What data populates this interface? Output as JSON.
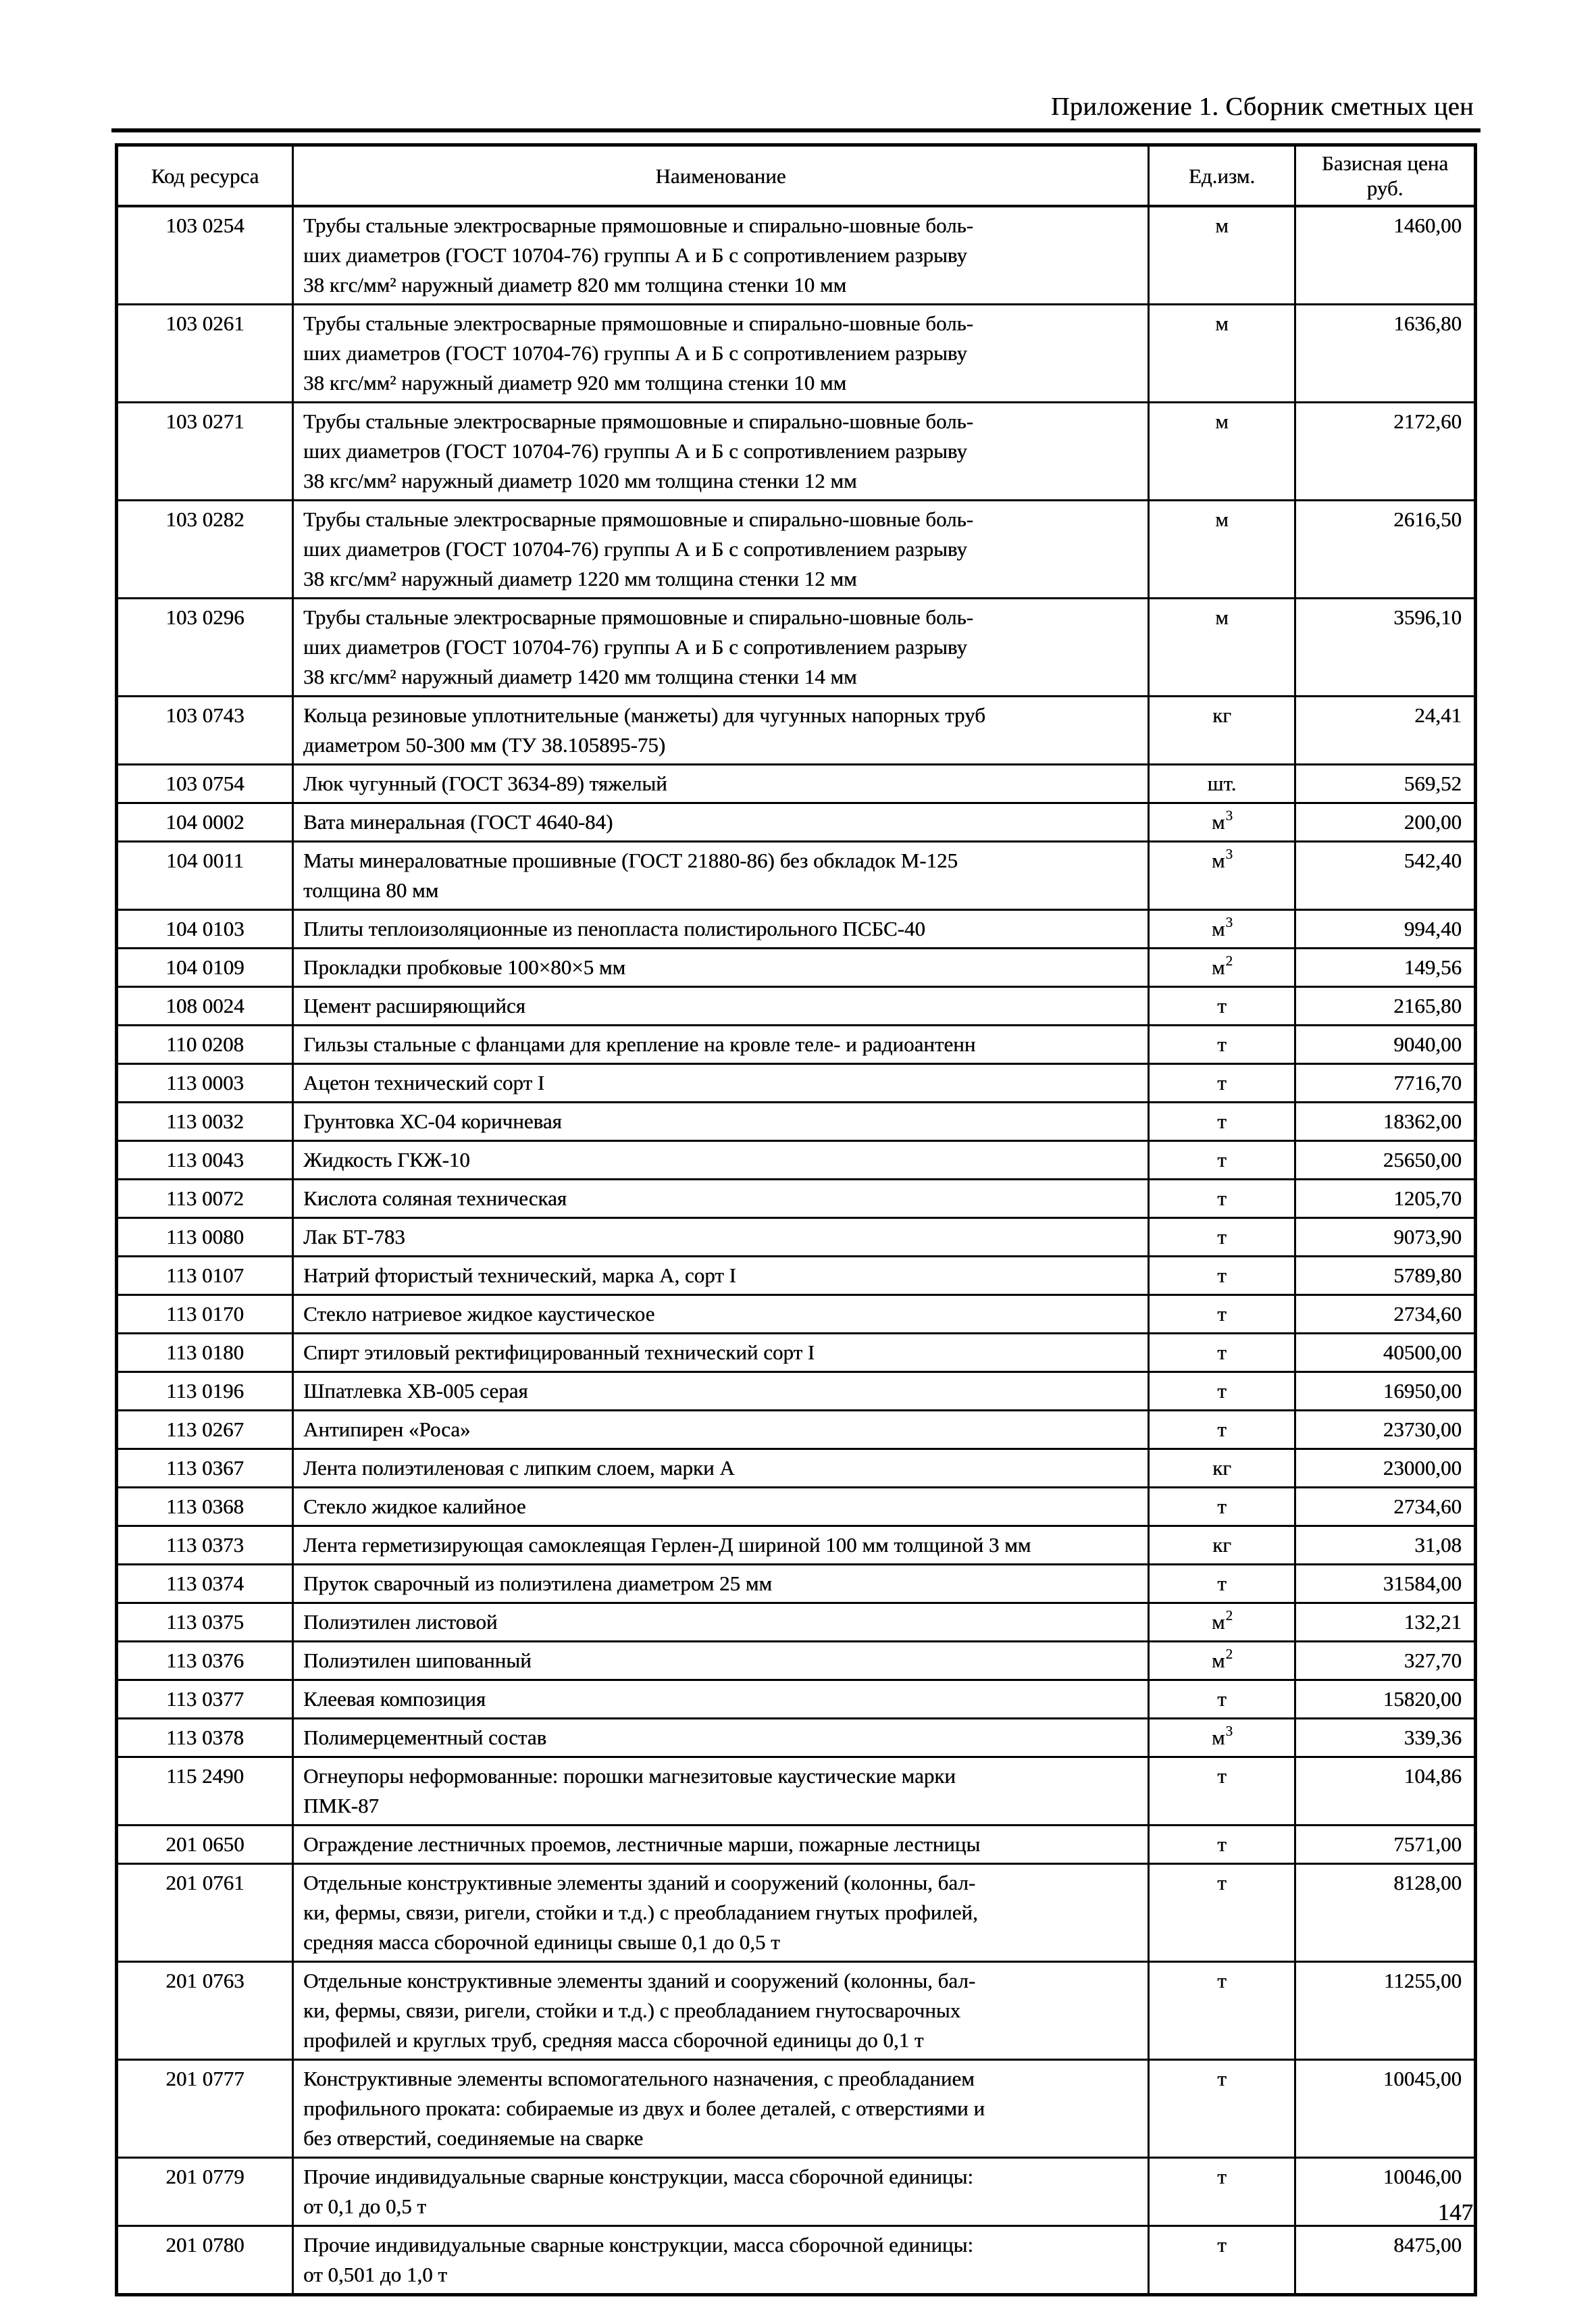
{
  "page": {
    "header_title": "Приложение 1. Сборник сметных цен",
    "page_number": "147"
  },
  "table": {
    "columns": [
      "Код ресурса",
      "Наименование",
      "Ед.изм.",
      "Базисная цена\nруб."
    ],
    "rows": [
      {
        "code": "103 0254",
        "name": "Трубы стальные электросварные прямошовные и спирально-шовные боль-\nших диаметров (ГОСТ 10704-76) группы А и Б с сопротивлением разрыву\n38 кгс/мм² наружный диаметр 820 мм толщина стенки 10 мм",
        "unit": "м",
        "price": "1460,00"
      },
      {
        "code": "103 0261",
        "name": "Трубы стальные электросварные прямошовные и спирально-шовные боль-\nших диаметров (ГОСТ 10704-76) группы А и Б с сопротивлением разрыву\n38 кгс/мм² наружный диаметр 920 мм толщина стенки 10 мм",
        "unit": "м",
        "price": "1636,80"
      },
      {
        "code": "103 0271",
        "name": "Трубы стальные электросварные прямошовные и спирально-шовные боль-\nших диаметров (ГОСТ 10704-76) группы А и Б с сопротивлением разрыву\n38 кгс/мм² наружный диаметр 1020 мм толщина стенки 12 мм",
        "unit": "м",
        "price": "2172,60"
      },
      {
        "code": "103 0282",
        "name": "Трубы стальные электросварные прямошовные и спирально-шовные боль-\nших диаметров (ГОСТ 10704-76) группы А и Б с сопротивлением разрыву\n38 кгс/мм² наружный диаметр 1220 мм толщина стенки 12 мм",
        "unit": "м",
        "price": "2616,50"
      },
      {
        "code": "103 0296",
        "name": "Трубы стальные электросварные прямошовные и спирально-шовные боль-\nших диаметров (ГОСТ 10704-76) группы А и Б с сопротивлением разрыву\n38 кгс/мм² наружный диаметр 1420 мм толщина стенки 14 мм",
        "unit": "м",
        "price": "3596,10"
      },
      {
        "code": "103 0743",
        "name": "Кольца резиновые уплотнительные (манжеты) для чугунных напорных труб\nдиаметром 50-300 мм (ТУ 38.105895-75)",
        "unit": "кг",
        "price": "24,41"
      },
      {
        "code": "103 0754",
        "name": "Люк чугунный (ГОСТ 3634-89) тяжелый",
        "unit": "шт.",
        "price": "569,52"
      },
      {
        "code": "104 0002",
        "name": "Вата минеральная (ГОСТ 4640-84)",
        "unit": "м3",
        "price": "200,00"
      },
      {
        "code": "104 0011",
        "name": "Маты минераловатные прошивные (ГОСТ 21880-86) без обкладок М-125\nтолщина 80 мм",
        "unit": "м3",
        "price": "542,40"
      },
      {
        "code": "104 0103",
        "name": "Плиты теплоизоляционные из пенопласта полистирольного ПСБС-40",
        "unit": "м3",
        "price": "994,40"
      },
      {
        "code": "104 0109",
        "name": "Прокладки пробковые 100×80×5 мм",
        "unit": "м2",
        "price": "149,56"
      },
      {
        "code": "108 0024",
        "name": "Цемент расширяющийся",
        "unit": "т",
        "price": "2165,80"
      },
      {
        "code": "110 0208",
        "name": "Гильзы стальные с фланцами для крепление на кровле теле- и радиоантенн",
        "unit": "т",
        "price": "9040,00"
      },
      {
        "code": "113 0003",
        "name": "Ацетон технический сорт I",
        "unit": "т",
        "price": "7716,70"
      },
      {
        "code": "113 0032",
        "name": "Грунтовка ХС-04 коричневая",
        "unit": "т",
        "price": "18362,00"
      },
      {
        "code": "113 0043",
        "name": "Жидкость ГКЖ-10",
        "unit": "т",
        "price": "25650,00"
      },
      {
        "code": "113 0072",
        "name": "Кислота соляная техническая",
        "unit": "т",
        "price": "1205,70"
      },
      {
        "code": "113 0080",
        "name": "Лак БТ-783",
        "unit": "т",
        "price": "9073,90"
      },
      {
        "code": "113 0107",
        "name": "Натрий фтористый технический, марка А, сорт I",
        "unit": "т",
        "price": "5789,80"
      },
      {
        "code": "113 0170",
        "name": "Стекло натриевое жидкое каустическое",
        "unit": "т",
        "price": "2734,60"
      },
      {
        "code": "113 0180",
        "name": "Спирт этиловый ректифицированный технический сорт I",
        "unit": "т",
        "price": "40500,00"
      },
      {
        "code": "113 0196",
        "name": "Шпатлевка ХВ-005 серая",
        "unit": "т",
        "price": "16950,00"
      },
      {
        "code": "113 0267",
        "name": "Антипирен «Роса»",
        "unit": "т",
        "price": "23730,00"
      },
      {
        "code": "113 0367",
        "name": "Лента полиэтиленовая с липким слоем, марки А",
        "unit": "кг",
        "price": "23000,00"
      },
      {
        "code": "113 0368",
        "name": "Стекло жидкое калийное",
        "unit": "т",
        "price": "2734,60"
      },
      {
        "code": "113 0373",
        "name": "Лента герметизирующая самоклеящая Герлен-Д шириной 100 мм толщиной 3 мм",
        "unit": "кг",
        "price": "31,08"
      },
      {
        "code": "113 0374",
        "name": "Пруток сварочный из полиэтилена диаметром 25 мм",
        "unit": "т",
        "price": "31584,00"
      },
      {
        "code": "113 0375",
        "name": "Полиэтилен листовой",
        "unit": "м2",
        "price": "132,21"
      },
      {
        "code": "113 0376",
        "name": "Полиэтилен шипованный",
        "unit": "м2",
        "price": "327,70"
      },
      {
        "code": "113 0377",
        "name": "Клеевая композиция",
        "unit": "т",
        "price": "15820,00"
      },
      {
        "code": "113 0378",
        "name": "Полимерцементный состав",
        "unit": "м3",
        "price": "339,36"
      },
      {
        "code": "115 2490",
        "name": "Огнеупоры неформованные: порошки магнезитовые каустические марки\nПМК-87",
        "unit": "т",
        "price": "104,86"
      },
      {
        "code": "201 0650",
        "name": "Ограждение лестничных проемов, лестничные марши, пожарные лестницы",
        "unit": "т",
        "price": "7571,00"
      },
      {
        "code": "201 0761",
        "name": "Отдельные конструктивные элементы зданий и сооружений (колонны, бал-\nки, фермы, связи, ригели, стойки и т.д.) с преобладанием гнутых профилей,\nсредняя масса сборочной единицы свыше 0,1 до 0,5 т",
        "unit": "т",
        "price": "8128,00"
      },
      {
        "code": "201 0763",
        "name": "Отдельные конструктивные элементы зданий и сооружений (колонны, бал-\nки, фермы, связи, ригели, стойки и т.д.) с преобладанием гнутосварочных\nпрофилей и круглых труб, средняя масса сборочной единицы до 0,1 т",
        "unit": "т",
        "price": "11255,00"
      },
      {
        "code": "201 0777",
        "name": "Конструктивные элементы вспомогательного назначения, с преобладанием\nпрофильного проката: собираемые из двух и более деталей, с отверстиями и\nбез отверстий, соединяемые на сварке",
        "unit": "т",
        "price": "10045,00"
      },
      {
        "code": "201 0779",
        "name": "Прочие индивидуальные сварные конструкции, масса сборочной единицы:\nот 0,1 до 0,5 т",
        "unit": "т",
        "price": "10046,00"
      },
      {
        "code": "201 0780",
        "name": "Прочие индивидуальные сварные конструкции, масса сборочной единицы:\nот 0,501 до 1,0 т",
        "unit": "т",
        "price": "8475,00"
      }
    ]
  }
}
